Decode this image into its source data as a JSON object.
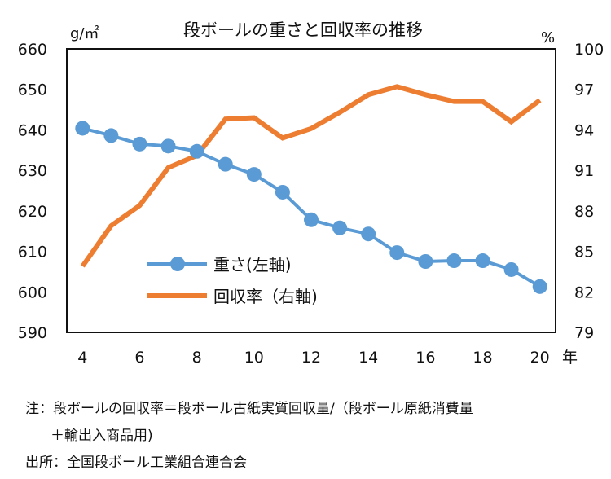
{
  "chart_data": {
    "type": "line",
    "title": "段ボールの重さと回収率の推移",
    "xlabel": "年",
    "ylabel_left": "g/㎡",
    "ylabel_right": "%",
    "x": [
      4,
      5,
      6,
      7,
      8,
      9,
      10,
      11,
      12,
      13,
      14,
      15,
      16,
      17,
      18,
      19,
      20
    ],
    "x_ticks": [
      "4",
      "6",
      "8",
      "10",
      "12",
      "14",
      "16",
      "18",
      "20"
    ],
    "x_tick_values": [
      4,
      6,
      8,
      10,
      12,
      14,
      16,
      18,
      20
    ],
    "xlim": [
      3.45,
      20.55
    ],
    "ylim_left": [
      590,
      660
    ],
    "y_ticks_left": [
      "590",
      "600",
      "610",
      "620",
      "630",
      "640",
      "650",
      "660"
    ],
    "ylim_right": [
      79,
      100
    ],
    "y_ticks_right": [
      "79",
      "82",
      "85",
      "88",
      "91",
      "94",
      "97",
      "100"
    ],
    "grid": false,
    "legend_position": "center-left",
    "series": [
      {
        "name": "重さ(左軸)",
        "axis": "left",
        "color": "#5B9BD5",
        "marker": "circle",
        "values": [
          640.4,
          638.6,
          636.5,
          636.0,
          634.7,
          631.5,
          629.0,
          624.6,
          617.8,
          615.8,
          614.3,
          609.7,
          607.5,
          607.7,
          607.7,
          605.5,
          601.3
        ]
      },
      {
        "name": "回収率（右軸)",
        "axis": "right",
        "color": "#ED7D31",
        "marker": "none",
        "values": [
          83.9,
          86.9,
          88.4,
          91.2,
          92.1,
          94.8,
          94.9,
          93.4,
          94.1,
          95.3,
          96.6,
          97.2,
          96.6,
          96.1,
          96.1,
          94.6,
          96.2
        ]
      }
    ]
  },
  "legend": {
    "weight_label": "重さ(左軸)",
    "rate_label": "回収率（右軸)"
  },
  "notes": {
    "line1": "注：段ボールの回収率＝段ボール古紙実質回収量/（段ボール原紙消費量",
    "line2": "＋輸出入商品用)",
    "source": "出所：全国段ボール工業組合連合会"
  }
}
